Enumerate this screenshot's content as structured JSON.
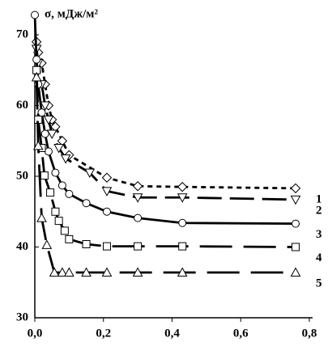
{
  "chart_data": {
    "type": "line",
    "y_label": "σ, мДж/м²",
    "xlim": [
      0,
      0.8
    ],
    "ylim": [
      30,
      73.2
    ],
    "xticks": [
      {
        "value": 0,
        "label": "0,0"
      },
      {
        "value": 0.2,
        "label": "0,2"
      },
      {
        "value": 0.4,
        "label": "0,4"
      },
      {
        "value": 0.6,
        "label": "0,6"
      },
      {
        "value": 0.8,
        "label": "0,8"
      }
    ],
    "yticks": [
      30,
      40,
      50,
      60,
      70
    ],
    "series": [
      {
        "name": "1",
        "marker": "diamond",
        "dash": "6 5",
        "color": "#000000",
        "x": [
          0.005,
          0.01,
          0.02,
          0.03,
          0.04,
          0.05,
          0.06,
          0.08,
          0.1,
          0.21,
          0.3,
          0.43,
          0.76
        ],
        "values": [
          69,
          67.5,
          66,
          63,
          60,
          58,
          57,
          55,
          53,
          49.8,
          48.6,
          48.5,
          48.3
        ]
      },
      {
        "name": "2",
        "marker": "down",
        "dash": "30 10",
        "color": "#000000",
        "x": [
          0.005,
          0.01,
          0.02,
          0.03,
          0.04,
          0.05,
          0.07,
          0.09,
          0.16,
          0.21,
          0.3,
          0.43,
          0.76
        ],
        "values": [
          68,
          66,
          63,
          60,
          58,
          56,
          54,
          52.5,
          50.5,
          47.9,
          47,
          47,
          46.7
        ]
      },
      {
        "name": "3",
        "marker": "circle",
        "dash": "",
        "color": "#000000",
        "x": [
          0,
          0.005,
          0.01,
          0.02,
          0.03,
          0.04,
          0.06,
          0.08,
          0.1,
          0.15,
          0.21,
          0.3,
          0.43,
          0.76
        ],
        "values": [
          72.8,
          66.5,
          63,
          59,
          56,
          53.5,
          50.5,
          48.7,
          47.5,
          46.2,
          45,
          44.1,
          43.4,
          43.3
        ]
      },
      {
        "name": "4",
        "marker": "square",
        "dash": "40 14",
        "color": "#000000",
        "x": [
          0.005,
          0.01,
          0.02,
          0.028,
          0.045,
          0.06,
          0.07,
          0.087,
          0.1,
          0.15,
          0.21,
          0.3,
          0.43,
          0.76
        ],
        "values": [
          65,
          58,
          54,
          50.1,
          47.7,
          45,
          43.7,
          42.3,
          41.1,
          40.4,
          40.1,
          40.1,
          40.1,
          40
        ]
      },
      {
        "name": "5",
        "marker": "up",
        "dash": "40 14",
        "color": "#000000",
        "x": [
          0.005,
          0.01,
          0.02,
          0.035,
          0.057,
          0.08,
          0.1,
          0.15,
          0.21,
          0.3,
          0.43,
          0.76
        ],
        "values": [
          64,
          54.3,
          44.1,
          40.3,
          36.4,
          36.4,
          36.4,
          36.4,
          36.4,
          36.4,
          36.4,
          36.4
        ]
      }
    ]
  }
}
